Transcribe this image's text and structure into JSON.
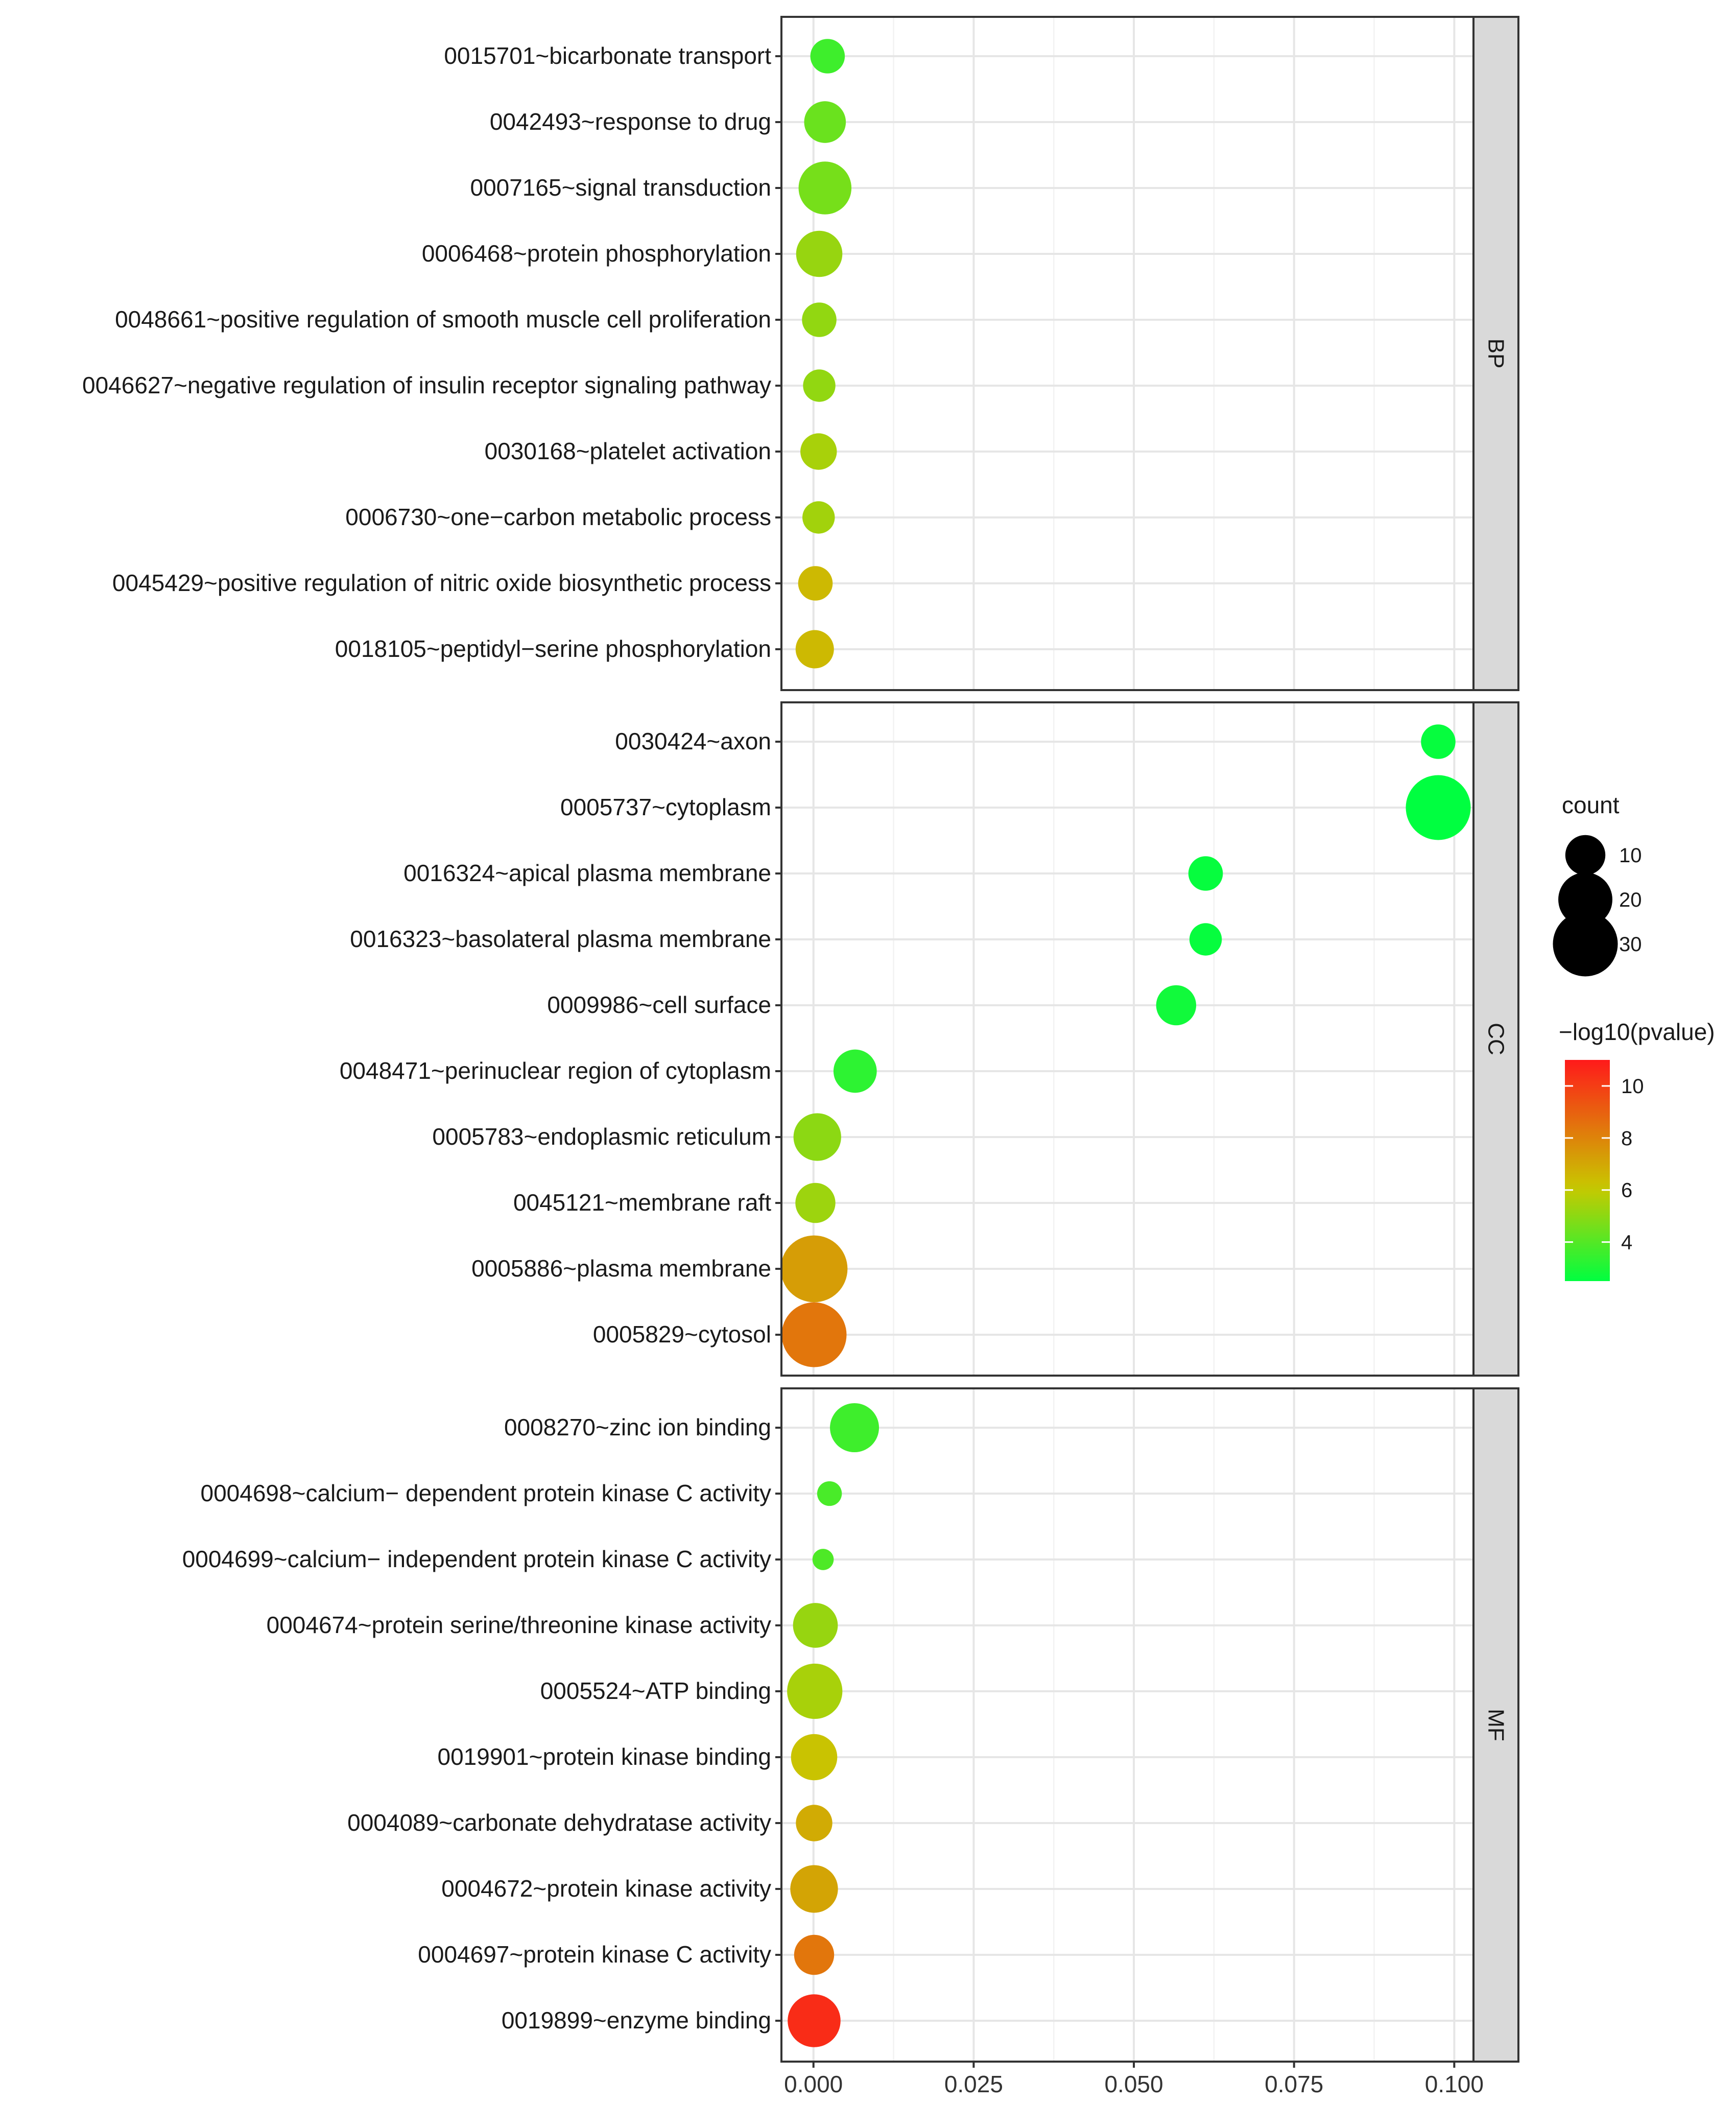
{
  "chart_data": {
    "type": "scatter",
    "title": "",
    "xlabel": "",
    "ylabel": "",
    "xlim": [
      -0.005,
      0.103
    ],
    "x_ticks": [
      0.0,
      0.025,
      0.05,
      0.075,
      0.1
    ],
    "x_tick_labels": [
      "0.000",
      "0.025",
      "0.050",
      "0.075",
      "0.100"
    ],
    "size_legend": {
      "title": "count",
      "entries": [
        {
          "label": "10",
          "value": 10
        },
        {
          "label": "20",
          "value": 20
        },
        {
          "label": "30",
          "value": 30
        }
      ]
    },
    "color_legend": {
      "title": "−log10(pvalue)",
      "range": [
        2.5,
        11
      ],
      "ticks": [
        {
          "label": "10",
          "value": 10
        },
        {
          "label": "8",
          "value": 8
        },
        {
          "label": "6",
          "value": 6
        },
        {
          "label": "4",
          "value": 4
        }
      ],
      "colors": {
        "low": "#00ff40",
        "mid": "#c8c800",
        "high": "#ff1a1a"
      }
    },
    "panels": [
      {
        "name": "BP",
        "points": [
          {
            "term": "0015701~bicarbonate transport",
            "x": 0.0022,
            "count": 7,
            "neglog10p": 3.6
          },
          {
            "term": "0042493~response to drug",
            "x": 0.0018,
            "count": 11,
            "neglog10p": 4.4
          },
          {
            "term": "0007165~signal transduction",
            "x": 0.0018,
            "count": 19,
            "neglog10p": 4.6
          },
          {
            "term": "0006468~protein phosphorylation",
            "x": 0.0009,
            "count": 14,
            "neglog10p": 5.2
          },
          {
            "term": "0048661~positive regulation of smooth muscle cell proliferation",
            "x": 0.0009,
            "count": 7,
            "neglog10p": 5.1
          },
          {
            "term": "0046627~negative regulation of insulin receptor signaling pathway",
            "x": 0.0009,
            "count": 6,
            "neglog10p": 5.1
          },
          {
            "term": "0030168~platelet activation",
            "x": 0.0008,
            "count": 8,
            "neglog10p": 5.5
          },
          {
            "term": "0006730~one−carbon metabolic process",
            "x": 0.0008,
            "count": 6,
            "neglog10p": 5.4
          },
          {
            "term": "0045429~positive regulation of nitric oxide biosynthetic process",
            "x": 0.0003,
            "count": 7,
            "neglog10p": 6.5
          },
          {
            "term": "0018105~peptidyl−serine phosphorylation",
            "x": 0.0002,
            "count": 9,
            "neglog10p": 6.5
          }
        ]
      },
      {
        "name": "CC",
        "points": [
          {
            "term": "0030424~axon",
            "x": 0.0975,
            "count": 7,
            "neglog10p": 2.6
          },
          {
            "term": "0005737~cytoplasm",
            "x": 0.0975,
            "count": 30,
            "neglog10p": 2.5
          },
          {
            "term": "0016324~apical plasma membrane",
            "x": 0.0612,
            "count": 7,
            "neglog10p": 2.6
          },
          {
            "term": "0016323~basolateral plasma membrane",
            "x": 0.0612,
            "count": 6,
            "neglog10p": 2.6
          },
          {
            "term": "0009986~cell surface",
            "x": 0.0566,
            "count": 10,
            "neglog10p": 2.8
          },
          {
            "term": "0048471~perinuclear region of cytoplasm",
            "x": 0.0065,
            "count": 12,
            "neglog10p": 3.3
          },
          {
            "term": "0005783~endoplasmic reticulum",
            "x": 0.0006,
            "count": 15,
            "neglog10p": 5.0
          },
          {
            "term": "0045121~membrane raft",
            "x": 0.0003,
            "count": 10,
            "neglog10p": 5.3
          },
          {
            "term": "0005886~plasma membrane",
            "x": 0.0001,
            "count": 32,
            "neglog10p": 7.3
          },
          {
            "term": "0005829~cytosol",
            "x": 0.0001,
            "count": 30,
            "neglog10p": 8.4
          }
        ]
      },
      {
        "name": "MF",
        "points": [
          {
            "term": "0008270~zinc ion binding",
            "x": 0.0064,
            "count": 16,
            "neglog10p": 3.6
          },
          {
            "term": "0004698~calcium− dependent protein kinase C activity",
            "x": 0.0025,
            "count": 3,
            "neglog10p": 3.8
          },
          {
            "term": "0004699~calcium− independent protein kinase C activity",
            "x": 0.0015,
            "count": 2,
            "neglog10p": 3.9
          },
          {
            "term": "0004674~protein serine/threonine kinase activity",
            "x": 0.0003,
            "count": 13,
            "neglog10p": 5.2
          },
          {
            "term": "0005524~ATP binding",
            "x": 0.0002,
            "count": 21,
            "neglog10p": 5.5
          },
          {
            "term": "0019901~protein kinase binding",
            "x": 0.0001,
            "count": 14,
            "neglog10p": 6.2
          },
          {
            "term": "0004089~carbonate dehydratase activity",
            "x": 0.0001,
            "count": 8,
            "neglog10p": 6.9
          },
          {
            "term": "0004672~protein kinase activity",
            "x": 0.0001,
            "count": 15,
            "neglog10p": 7.1
          },
          {
            "term": "0004697~protein kinase C activity",
            "x": 0.0001,
            "count": 10,
            "neglog10p": 8.4
          },
          {
            "term": "0019899~enzyme binding",
            "x": 0.0001,
            "count": 19,
            "neglog10p": 10.5
          }
        ]
      }
    ]
  }
}
